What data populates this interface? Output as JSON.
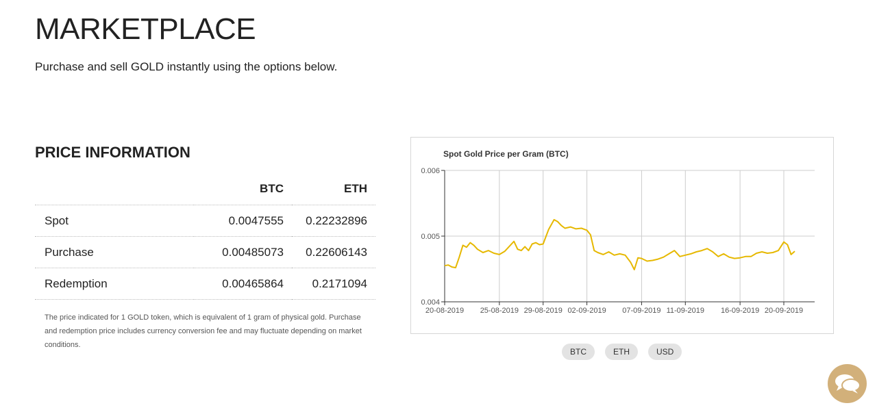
{
  "page": {
    "title": "MARKETPLACE",
    "subtitle": "Purchase and sell GOLD instantly using the options below."
  },
  "price_info": {
    "title": "PRICE INFORMATION",
    "columns": [
      "",
      "BTC",
      "ETH"
    ],
    "rows": [
      {
        "label": "Spot",
        "btc": "0.0047555",
        "eth": "0.22232896"
      },
      {
        "label": "Purchase",
        "btc": "0.00485073",
        "eth": "0.22606143"
      },
      {
        "label": "Redemption",
        "btc": "0.00465864",
        "eth": "0.2171094"
      }
    ],
    "disclaimer": "The price indicated for 1 GOLD token, which is equivalent of 1 gram of physical gold. Purchase and redemption price includes currency conversion fee and may fluctuate depending on market conditions."
  },
  "currency_buttons": [
    "BTC",
    "ETH",
    "USD"
  ],
  "chat": {
    "icon": "chat-bubbles-icon",
    "color": "#d2b07a"
  },
  "colors": {
    "line": "#e6b800",
    "grid": "#cccccc",
    "chat": "#d2b07a",
    "button": "#e3e3e3"
  },
  "chart_data": {
    "type": "line",
    "title": "Spot Gold Price per Gram (BTC)",
    "xlabel": "",
    "ylabel": "",
    "ylim": [
      0.004,
      0.006
    ],
    "y_ticks": [
      "0.004",
      "0.005",
      "0.006"
    ],
    "x_ticks": [
      "20-08-2019",
      "25-08-2019",
      "29-08-2019",
      "02-09-2019",
      "07-09-2019",
      "11-09-2019",
      "16-09-2019",
      "20-09-2019"
    ],
    "grid": true,
    "series": [
      {
        "x": [
          "2019-08-20",
          "2019-08-20",
          "2019-08-20",
          "2019-08-21",
          "2019-08-21",
          "2019-08-21",
          "2019-08-22",
          "2019-08-22",
          "2019-08-22",
          "2019-08-23",
          "2019-08-23",
          "2019-08-24",
          "2019-08-24",
          "2019-08-25",
          "2019-08-25",
          "2019-08-26",
          "2019-08-26",
          "2019-08-26",
          "2019-08-27",
          "2019-08-27",
          "2019-08-27",
          "2019-08-28",
          "2019-08-28",
          "2019-08-28",
          "2019-08-29",
          "2019-08-29",
          "2019-08-30",
          "2019-08-30",
          "2019-08-30",
          "2019-08-31",
          "2019-08-31",
          "2019-09-01",
          "2019-09-01",
          "2019-09-02",
          "2019-09-02",
          "2019-09-02",
          "2019-09-03",
          "2019-09-03",
          "2019-09-04",
          "2019-09-04",
          "2019-09-05",
          "2019-09-05",
          "2019-09-06",
          "2019-09-06",
          "2019-09-06",
          "2019-09-07",
          "2019-09-07",
          "2019-09-08",
          "2019-09-08",
          "2019-09-09",
          "2019-09-09",
          "2019-09-10",
          "2019-09-10",
          "2019-09-11",
          "2019-09-11",
          "2019-09-12",
          "2019-09-12",
          "2019-09-13",
          "2019-09-13",
          "2019-09-14",
          "2019-09-14",
          "2019-09-15",
          "2019-09-15",
          "2019-09-16",
          "2019-09-16",
          "2019-09-17",
          "2019-09-17",
          "2019-09-18",
          "2019-09-18",
          "2019-09-19",
          "2019-09-19",
          "2019-09-20",
          "2019-09-20",
          "2019-09-20",
          "2019-09-21"
        ],
        "y": [
          0.00455,
          0.00456,
          0.00453,
          0.00452,
          0.00468,
          0.00486,
          0.00483,
          0.0049,
          0.00486,
          0.0048,
          0.00475,
          0.00478,
          0.00474,
          0.00472,
          0.00477,
          0.00486,
          0.00492,
          0.0048,
          0.00478,
          0.00484,
          0.00478,
          0.00488,
          0.0049,
          0.00487,
          0.00488,
          0.0051,
          0.00525,
          0.00522,
          0.00516,
          0.00512,
          0.00514,
          0.00511,
          0.00512,
          0.00509,
          0.00502,
          0.00478,
          0.00475,
          0.00472,
          0.00476,
          0.00471,
          0.00473,
          0.00471,
          0.0046,
          0.00449,
          0.00467,
          0.00466,
          0.00462,
          0.00463,
          0.00465,
          0.00468,
          0.00473,
          0.00478,
          0.00469,
          0.00471,
          0.00473,
          0.00476,
          0.00478,
          0.00481,
          0.00476,
          0.00469,
          0.00473,
          0.00468,
          0.00466,
          0.00467,
          0.00469,
          0.00469,
          0.00474,
          0.00476,
          0.00474,
          0.00475,
          0.00478,
          0.00491,
          0.00487,
          0.00472,
          0.00477
        ]
      }
    ]
  }
}
